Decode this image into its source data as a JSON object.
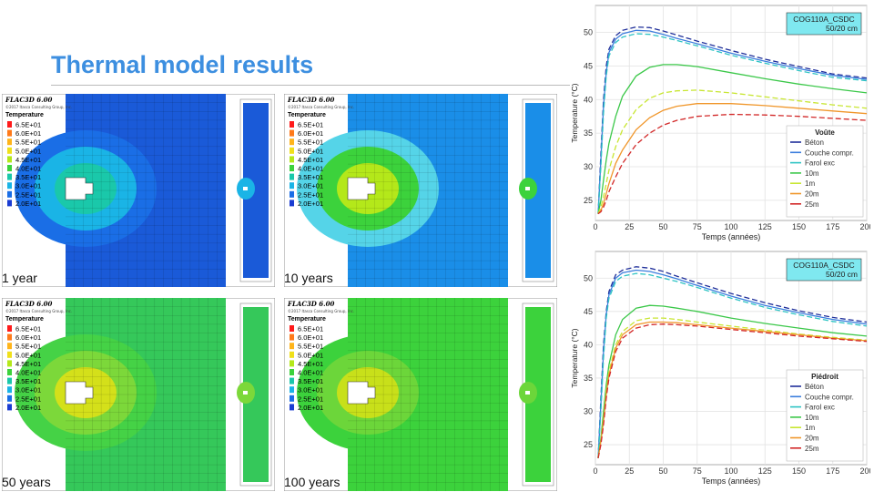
{
  "slide": {
    "title": "Thermal model results"
  },
  "legend_block": {
    "software": "FLAC3D 6.00",
    "meta": "©2017 Itasca Consulting Group, Inc.",
    "heading": "Temperature",
    "levels": [
      "6.5E+01",
      "6.0E+01",
      "5.5E+01",
      "5.0E+01",
      "4.5E+01",
      "4.0E+01",
      "3.5E+01",
      "3.0E+01",
      "2.5E+01",
      "2.0E+01"
    ],
    "colors": [
      "#ff1a1a",
      "#ff7a1a",
      "#ffb41a",
      "#f0e01a",
      "#b4e81a",
      "#3cd23c",
      "#1ac8aa",
      "#1ab4e6",
      "#1a6ee6",
      "#1a3cd2"
    ]
  },
  "panels": [
    {
      "caption": "1 year",
      "bg": "#1a5ad8",
      "r1": "#1a6ee6",
      "r2": "#1ab4e6",
      "r3": "#1ac8aa"
    },
    {
      "caption": "10 years",
      "bg": "#1a8ee8",
      "r1": "#55d4e8",
      "r2": "#3cd23c",
      "r3": "#b4e81a"
    },
    {
      "caption": "50 years",
      "bg": "#35c85a",
      "r1": "#45d246",
      "r2": "#7cd83a",
      "r3": "#d4e01a"
    },
    {
      "caption": "100 years",
      "bg": "#3cd23c",
      "r1": "#3cd23c",
      "r2": "#6cd63a",
      "r3": "#c8e01a"
    }
  ],
  "chart_data": [
    {
      "type": "line",
      "box_label": [
        "COG110A_CSDC",
        "50/20 cm"
      ],
      "legend_title": "Voûte",
      "xlabel": "Temps (années)",
      "ylabel": "Temperature (°C)",
      "xlim": [
        0,
        200
      ],
      "ylim": [
        22,
        54
      ],
      "xticks": [
        0,
        25,
        50,
        75,
        100,
        125,
        150,
        175,
        200
      ],
      "yticks": [
        25,
        30,
        35,
        40,
        45,
        50
      ],
      "x": [
        2,
        4,
        6,
        8,
        10,
        15,
        20,
        30,
        40,
        50,
        60,
        75,
        100,
        125,
        150,
        175,
        200
      ],
      "series": [
        {
          "name": "Béton",
          "color": "#1f2f9a",
          "values": [
            23,
            32,
            40,
            45,
            47.5,
            49.5,
            50.3,
            50.8,
            50.7,
            50.2,
            49.6,
            48.7,
            47.3,
            46.0,
            44.9,
            43.8,
            43.2
          ]
        },
        {
          "name": "Couche compr.",
          "color": "#3b7ddd",
          "values": [
            23,
            31,
            39,
            44,
            47,
            49,
            49.8,
            50.3,
            50.2,
            49.7,
            49.1,
            48.3,
            46.9,
            45.7,
            44.6,
            43.6,
            43.0
          ]
        },
        {
          "name": "Farol exc",
          "color": "#2ec4c4",
          "values": [
            23,
            30,
            38,
            43.5,
            46.5,
            48.5,
            49.3,
            49.8,
            49.7,
            49.3,
            48.8,
            48.0,
            46.6,
            45.4,
            44.3,
            43.3,
            42.8
          ]
        },
        {
          "name": "10m",
          "color": "#3cc84a",
          "values": [
            23,
            25,
            28,
            31,
            33.5,
            37.5,
            40.5,
            43.5,
            44.8,
            45.2,
            45.2,
            44.9,
            44.0,
            43.1,
            42.3,
            41.6,
            41.0
          ]
        },
        {
          "name": "1m",
          "color": "#c8e632",
          "values": [
            23,
            24,
            25.5,
            27.5,
            29.5,
            33,
            35.5,
            38.5,
            40.2,
            41.0,
            41.3,
            41.4,
            41.0,
            40.4,
            39.8,
            39.2,
            38.7
          ]
        },
        {
          "name": "20m",
          "color": "#f0962a",
          "values": [
            23,
            23.5,
            24.5,
            26,
            27.5,
            30.5,
            32.5,
            35.5,
            37.3,
            38.4,
            39.0,
            39.4,
            39.4,
            39.1,
            38.7,
            38.3,
            37.9
          ]
        },
        {
          "name": "25m",
          "color": "#d22828",
          "values": [
            23,
            23.3,
            24,
            25,
            26.3,
            28.5,
            30.5,
            33.3,
            35.0,
            36.2,
            36.9,
            37.5,
            37.8,
            37.7,
            37.5,
            37.2,
            36.9
          ]
        }
      ]
    },
    {
      "type": "line",
      "box_label": [
        "COG110A_CSDC",
        "50/20 cm"
      ],
      "legend_title": "Piédroit",
      "xlabel": "Temps (années)",
      "ylabel": "Temperature (°C)",
      "xlim": [
        0,
        200
      ],
      "ylim": [
        22,
        54
      ],
      "xticks": [
        0,
        25,
        50,
        75,
        100,
        125,
        150,
        175,
        200
      ],
      "yticks": [
        25,
        30,
        35,
        40,
        45,
        50
      ],
      "x": [
        2,
        4,
        6,
        8,
        10,
        15,
        20,
        30,
        40,
        50,
        60,
        75,
        100,
        125,
        150,
        175,
        200
      ],
      "series": [
        {
          "name": "Béton",
          "color": "#1f2f9a",
          "values": [
            23,
            32,
            40,
            45,
            48,
            50.5,
            51.2,
            51.7,
            51.5,
            51.0,
            50.3,
            49.3,
            47.7,
            46.3,
            45.1,
            44.1,
            43.4
          ]
        },
        {
          "name": "Couche compr.",
          "color": "#3b7ddd",
          "values": [
            23,
            31,
            39,
            44.5,
            47.5,
            50,
            50.8,
            51.2,
            51.0,
            50.5,
            49.9,
            48.9,
            47.3,
            45.9,
            44.8,
            43.8,
            43.1
          ]
        },
        {
          "name": "Farol exc",
          "color": "#2ec4c4",
          "values": [
            23,
            30,
            38,
            44,
            47,
            49.5,
            50.3,
            50.7,
            50.5,
            50.0,
            49.5,
            48.6,
            47.0,
            45.6,
            44.5,
            43.5,
            42.8
          ]
        },
        {
          "name": "10m",
          "color": "#3cc84a",
          "values": [
            23,
            26,
            30,
            34,
            37,
            41.5,
            43.8,
            45.5,
            45.9,
            45.8,
            45.5,
            45.0,
            44.0,
            43.2,
            42.5,
            41.8,
            41.3
          ]
        },
        {
          "name": "1m",
          "color": "#c8e632",
          "values": [
            23,
            25.5,
            29,
            33,
            36,
            40,
            42,
            43.6,
            44.0,
            44.0,
            43.8,
            43.4,
            42.8,
            42.2,
            41.6,
            41.1,
            40.7
          ]
        },
        {
          "name": "20m",
          "color": "#f0962a",
          "values": [
            23,
            25.5,
            28.5,
            32.5,
            35.5,
            39.5,
            41.5,
            43.0,
            43.4,
            43.4,
            43.3,
            43.0,
            42.5,
            42.0,
            41.5,
            41.0,
            40.6
          ]
        },
        {
          "name": "25m",
          "color": "#d22828",
          "values": [
            23,
            25,
            28,
            32,
            35,
            39,
            41,
            42.5,
            43.0,
            43.1,
            43.0,
            42.8,
            42.3,
            41.8,
            41.3,
            40.9,
            40.5
          ]
        }
      ]
    }
  ]
}
